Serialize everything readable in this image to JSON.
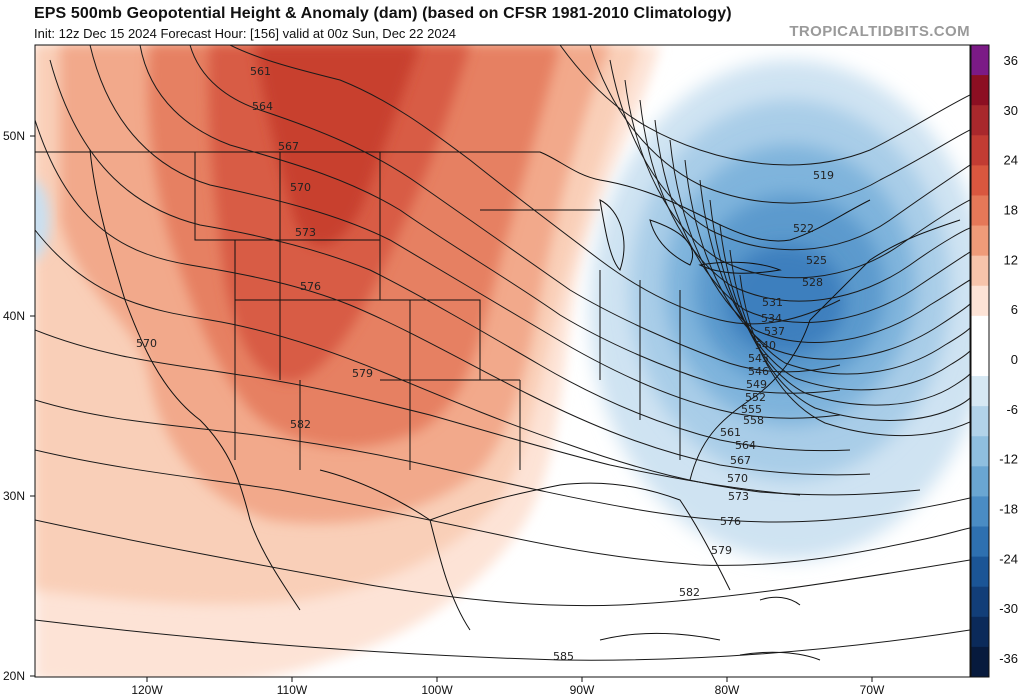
{
  "header": {
    "title": "EPS 500mb Geopotential Height & Anomaly (dam) (based on CFSR 1981-2010 Climatology)",
    "subtitle": "Init: 12z Dec 15 2024   Forecast Hour: [156]   valid at 00z Sun, Dec 22 2024",
    "brand": "TROPICALTIDBITS.COM"
  },
  "axes": {
    "lon_labels": [
      "120W",
      "110W",
      "100W",
      "90W",
      "80W",
      "70W"
    ],
    "lat_labels": [
      "50N",
      "40N",
      "30N",
      "20N"
    ]
  },
  "colorbar": {
    "labels": [
      "36",
      "30",
      "24",
      "18",
      "12",
      "6",
      "0",
      "-6",
      "-12",
      "-18",
      "-24",
      "-30",
      "-36"
    ],
    "colors": [
      "#7b1a86",
      "#8c0f22",
      "#a8282c",
      "#c23c33",
      "#d9573f",
      "#e57858",
      "#ef9b79",
      "#f7c4ab",
      "#fde3d6",
      "#ffffff",
      "#ffffff",
      "#d6e8f3",
      "#b2d3e9",
      "#8fbfdf",
      "#6aa6d2",
      "#4a8cc4",
      "#2e70b0",
      "#1b5596",
      "#123e78",
      "#0b2a5a",
      "#071a3d"
    ]
  },
  "contours": {
    "labels": [
      "561",
      "564",
      "567",
      "570",
      "573",
      "576",
      "579",
      "582",
      "570",
      "519",
      "522",
      "525",
      "528",
      "531",
      "534",
      "537",
      "540",
      "543",
      "546",
      "549",
      "552",
      "555",
      "558",
      "561",
      "564",
      "567",
      "570",
      "573",
      "576",
      "579",
      "582",
      "585"
    ]
  },
  "legend_hint": "height contours (dam), anomaly shading (dam)"
}
